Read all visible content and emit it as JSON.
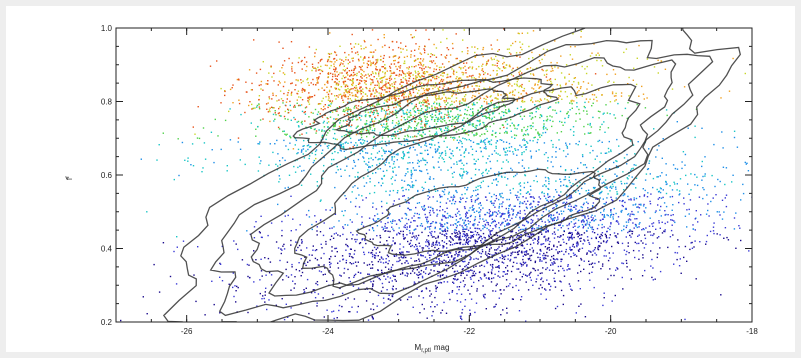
{
  "chart_data": {
    "type": "scatter",
    "title": "",
    "xlabel": "M",
    "xlabel_subscript": "r,ptl",
    "xlabel_suffix": "mag",
    "ylabel": "f",
    "ylabel_superscript": "r",
    "xlim": [
      -27,
      -18
    ],
    "ylim": [
      0.2,
      1.0
    ],
    "x_direction": "reversed",
    "x_ticks": [
      -26,
      -24,
      -22,
      -20,
      -18
    ],
    "x_tick_labels": [
      "-26",
      "-24",
      "-22",
      "-20",
      "-18"
    ],
    "y_ticks": [
      0.2,
      0.4,
      0.6,
      0.8,
      1.0
    ],
    "y_tick_labels": [
      "0.2",
      "0.4",
      "0.6",
      "0.8",
      "1.0"
    ],
    "grid": false,
    "legend": "none",
    "density_colors": [
      "#1a0a8c",
      "#3a3ad6",
      "#1f8fe8",
      "#19c6c6",
      "#4fd24a",
      "#c8d628",
      "#f0a020",
      "#e8541c"
    ],
    "contour_color": "#333333",
    "clusters": [
      {
        "name": "",
        "cx": -21.6,
        "cy": 0.44,
        "sx": 1.6,
        "sy": 0.1,
        "rho": 0.45,
        "n": 3200,
        "color_group": "blue"
      },
      {
        "name": "",
        "cx": -22.4,
        "cy": 0.76,
        "sx": 1.3,
        "sy": 0.09,
        "rho": 0.35,
        "n": 2300,
        "color_group": "green"
      },
      {
        "name": "",
        "cx": -23.3,
        "cy": 0.85,
        "sx": 0.9,
        "sy": 0.06,
        "rho": 0.2,
        "n": 1100,
        "color_group": "orange"
      }
    ],
    "contours": [
      {
        "level": 1,
        "cx": -22.3,
        "cy": 0.6,
        "rx": 4.2,
        "ry": 0.26,
        "angle": -25
      },
      {
        "level": 2,
        "cx": -22.2,
        "cy": 0.6,
        "rx": 3.7,
        "ry": 0.22,
        "angle": -25
      },
      {
        "level": 3,
        "cx": -22.1,
        "cy": 0.6,
        "rx": 3.2,
        "ry": 0.19,
        "angle": -25
      },
      {
        "level": 4,
        "cx": -22.0,
        "cy": 0.58,
        "rx": 2.6,
        "ry": 0.16,
        "angle": -26
      },
      {
        "level": 5,
        "cx": -21.8,
        "cy": 0.5,
        "rx": 1.7,
        "ry": 0.09,
        "angle": -12
      },
      {
        "level": 6,
        "cx": -22.6,
        "cy": 0.77,
        "rx": 1.8,
        "ry": 0.07,
        "angle": -10
      },
      {
        "level": 7,
        "cx": -22.6,
        "cy": 0.77,
        "rx": 1.2,
        "ry": 0.045,
        "angle": -10
      }
    ]
  }
}
